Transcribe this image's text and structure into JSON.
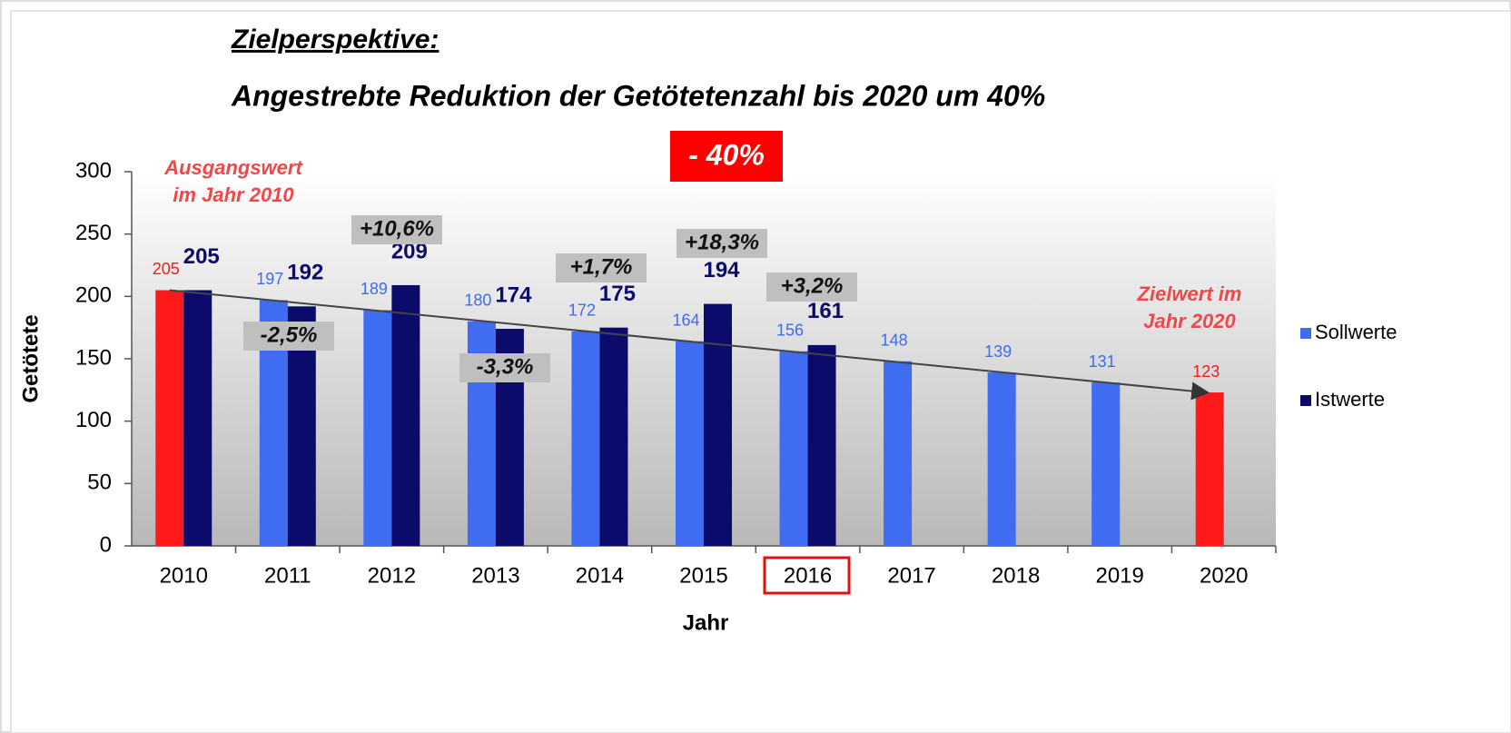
{
  "chart_data": {
    "type": "bar",
    "title": "Zielperspektive:",
    "subtitle": "Angestrebte Reduktion der Getötetenzahl bis 2020 um 40%",
    "x_label": "Jahr",
    "y_label": "Getötete",
    "categories": [
      "2010",
      "2011",
      "2012",
      "2013",
      "2014",
      "2015",
      "2016",
      "2017",
      "2018",
      "2019",
      "2020"
    ],
    "series": [
      {
        "name": "Sollwerte",
        "color": "#3f6cf0",
        "colors": [
          "#ff1a1a",
          "#3f6cf0",
          "#3f6cf0",
          "#3f6cf0",
          "#3f6cf0",
          "#3f6cf0",
          "#3f6cf0",
          "#3f6cf0",
          "#3f6cf0",
          "#3f6cf0",
          "#ff1a1a"
        ],
        "values": [
          205,
          197,
          189,
          180,
          172,
          164,
          156,
          148,
          139,
          131,
          123
        ]
      },
      {
        "name": "Istwerte",
        "color": "#0b0b6b",
        "values": [
          205,
          192,
          209,
          174,
          175,
          194,
          161,
          null,
          null,
          null,
          null
        ]
      }
    ],
    "ylim": [
      0,
      300
    ],
    "yticks": [
      0,
      50,
      100,
      150,
      200,
      250,
      300
    ],
    "annotations": [
      "- 40%",
      "Ausgangswert",
      "im Jahr 2010",
      "Zielwert im",
      "Jahr 2020",
      "+10,6%",
      "-2,5%",
      "-3,3%",
      "+1,7%",
      "+18,3%",
      "+3,2%"
    ],
    "legend": "right"
  }
}
